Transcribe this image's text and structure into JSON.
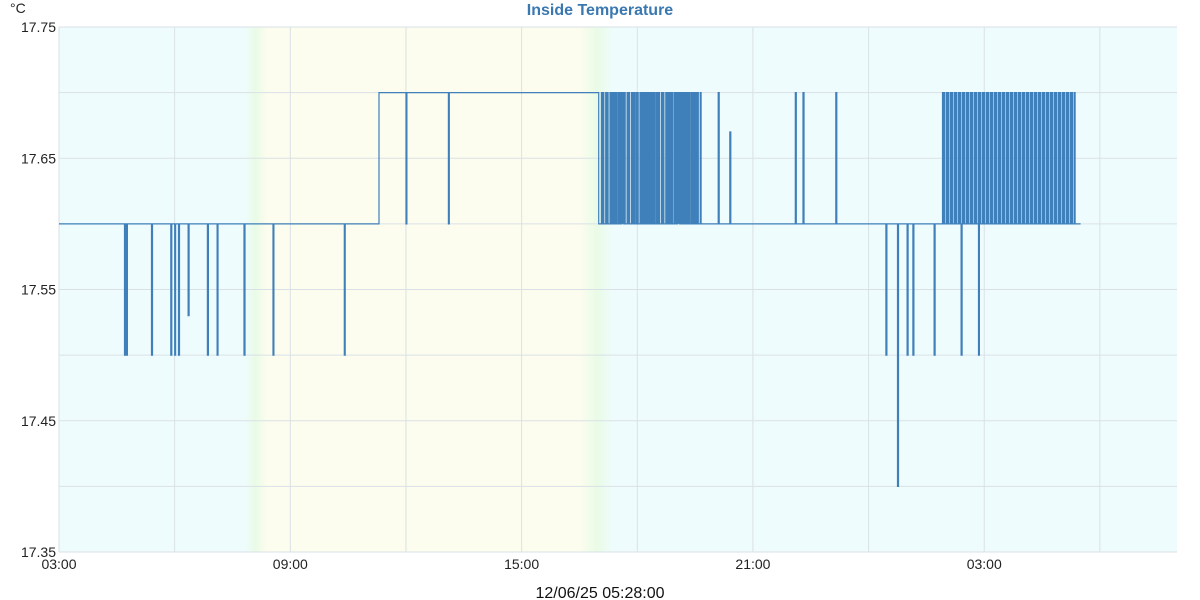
{
  "colors": {
    "title": "#3a78b0",
    "line": "#3f7fba",
    "grid": "#d9e1e6",
    "night_bg": "#effcfd",
    "day_bg": "#fdfdef",
    "dawn_tint": "#e9fbe6",
    "dusk_tint": "#e9fbe6"
  },
  "chart_data": {
    "type": "line",
    "title": "Inside Temperature",
    "ylabel": "°C",
    "xlabel": "",
    "timestamp": "12/06/25 05:28:00",
    "xlim": [
      3.0,
      32.0
    ],
    "ylim": [
      17.35,
      17.75
    ],
    "y_ticks": [
      "17.75",
      "17.65",
      "17.55",
      "17.45",
      "17.35"
    ],
    "x_ticks": [
      {
        "hour": 3,
        "label": "03:00"
      },
      {
        "hour": 9,
        "label": "09:00"
      },
      {
        "hour": 15,
        "label": "15:00"
      },
      {
        "hour": 21,
        "label": "21:00"
      },
      {
        "hour": 27,
        "label": "03:00"
      }
    ],
    "grid": true,
    "background_bands": [
      {
        "from": 3.0,
        "to": 7.8,
        "type": "night"
      },
      {
        "from": 7.8,
        "to": 8.4,
        "type": "transition"
      },
      {
        "from": 8.4,
        "to": 16.5,
        "type": "day"
      },
      {
        "from": 16.5,
        "to": 17.4,
        "type": "transition"
      },
      {
        "from": 17.4,
        "to": 32.0,
        "type": "night"
      }
    ],
    "baseline_segments": [
      {
        "from": 3.0,
        "to": 11.3,
        "value": 17.6
      },
      {
        "from": 11.3,
        "to": 17.0,
        "value": 17.7
      },
      {
        "from": 17.0,
        "to": 29.5,
        "value": 17.6
      }
    ],
    "dips": [
      {
        "x": 4.7,
        "value": 17.5
      },
      {
        "x": 4.75,
        "value": 17.5
      },
      {
        "x": 5.4,
        "value": 17.5
      },
      {
        "x": 5.9,
        "value": 17.5
      },
      {
        "x": 6.0,
        "value": 17.5
      },
      {
        "x": 6.1,
        "value": 17.5
      },
      {
        "x": 6.35,
        "value": 17.53
      },
      {
        "x": 6.85,
        "value": 17.5
      },
      {
        "x": 7.1,
        "value": 17.5
      },
      {
        "x": 7.8,
        "value": 17.5
      },
      {
        "x": 8.55,
        "value": 17.5
      },
      {
        "x": 10.4,
        "value": 17.5
      },
      {
        "x": 12.0,
        "value": 17.6
      },
      {
        "x": 13.1,
        "value": 17.6
      },
      {
        "x": 24.45,
        "value": 17.5
      },
      {
        "x": 24.75,
        "value": 17.4
      },
      {
        "x": 25.0,
        "value": 17.5
      },
      {
        "x": 25.15,
        "value": 17.5
      },
      {
        "x": 25.7,
        "value": 17.5
      },
      {
        "x": 26.4,
        "value": 17.5
      },
      {
        "x": 26.85,
        "value": 17.5
      }
    ],
    "spikes": [
      {
        "x": 17.1,
        "value": 17.7
      },
      {
        "x": 17.2,
        "value": 17.7
      },
      {
        "x": 17.35,
        "value": 17.7
      },
      {
        "x": 17.5,
        "value": 17.7
      },
      {
        "x": 17.6,
        "value": 17.7
      },
      {
        "x": 17.75,
        "value": 17.7
      },
      {
        "x": 17.9,
        "value": 17.7
      },
      {
        "x": 18.0,
        "value": 17.7
      },
      {
        "x": 18.15,
        "value": 17.7
      },
      {
        "x": 18.25,
        "value": 17.7
      },
      {
        "x": 18.35,
        "value": 17.7
      },
      {
        "x": 18.5,
        "value": 17.7
      },
      {
        "x": 18.65,
        "value": 17.7
      },
      {
        "x": 18.8,
        "value": 17.7
      },
      {
        "x": 18.9,
        "value": 17.7
      },
      {
        "x": 19.05,
        "value": 17.7
      },
      {
        "x": 19.15,
        "value": 17.7
      },
      {
        "x": 19.25,
        "value": 17.7
      },
      {
        "x": 19.35,
        "value": 17.7
      },
      {
        "x": 19.5,
        "value": 17.7
      },
      {
        "x": 20.1,
        "value": 17.7
      },
      {
        "x": 20.4,
        "value": 17.67
      },
      {
        "x": 22.1,
        "value": 17.7
      },
      {
        "x": 22.3,
        "value": 17.7
      },
      {
        "x": 23.15,
        "value": 17.7
      }
    ],
    "dense_blocks": [
      {
        "from": 17.05,
        "to": 19.65,
        "count": 70,
        "high": 17.7,
        "low": 17.6
      },
      {
        "from": 25.9,
        "to": 29.35,
        "count": 100,
        "high": 17.7,
        "low": 17.6
      }
    ],
    "end_x": 29.5
  }
}
